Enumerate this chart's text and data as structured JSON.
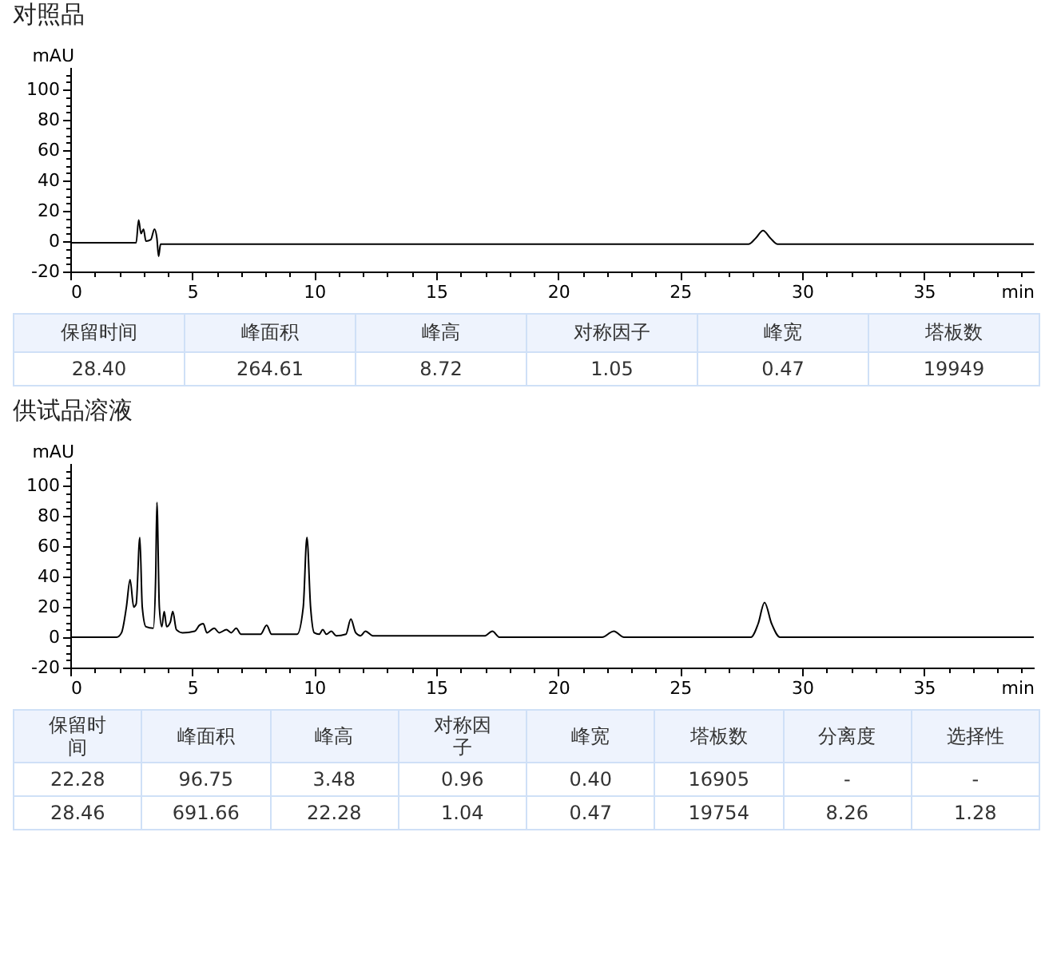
{
  "chart_data": [
    {
      "type": "line",
      "title": "对照品",
      "xlabel": "min",
      "ylabel": "mAU",
      "xlim": [
        0,
        39.5
      ],
      "ylim": [
        -20,
        115
      ],
      "xticks": [
        0,
        {
          "value": 1,
          "label": null
        },
        {
          "value": 2,
          "label": null
        },
        {
          "value": 3,
          "label": null
        },
        {
          "value": 4,
          "label": null
        },
        5,
        {
          "value": 6,
          "label": null
        },
        {
          "value": 7,
          "label": null
        },
        {
          "value": 8,
          "label": null
        },
        {
          "value": 9,
          "label": null
        },
        10,
        {
          "value": 11,
          "label": null
        },
        {
          "value": 12,
          "label": null
        },
        {
          "value": 13,
          "label": null
        },
        {
          "value": 14,
          "label": null
        },
        15,
        {
          "value": 16,
          "label": null
        },
        {
          "value": 17,
          "label": null
        },
        {
          "value": 18,
          "label": null
        },
        {
          "value": 19,
          "label": null
        },
        20,
        {
          "value": 21,
          "label": null
        },
        {
          "value": 22,
          "label": null
        },
        {
          "value": 23,
          "label": null
        },
        {
          "value": 24,
          "label": null
        },
        25,
        {
          "value": 26,
          "label": null
        },
        {
          "value": 27,
          "label": null
        },
        {
          "value": 28,
          "label": null
        },
        {
          "value": 29,
          "label": null
        },
        30,
        {
          "value": 31,
          "label": null
        },
        {
          "value": 32,
          "label": null
        },
        {
          "value": 33,
          "label": null
        },
        {
          "value": 34,
          "label": null
        },
        35,
        {
          "value": 36,
          "label": null
        },
        {
          "value": 37,
          "label": null
        },
        {
          "value": 38,
          "label": null
        },
        {
          "value": 39,
          "label": null
        }
      ],
      "yticks": [
        -20,
        {
          "value": -15,
          "label": null
        },
        {
          "value": -10,
          "label": null
        },
        {
          "value": -5,
          "label": null
        },
        0,
        {
          "value": 5,
          "label": null
        },
        {
          "value": 10,
          "label": null
        },
        {
          "value": 15,
          "label": null
        },
        20,
        {
          "value": 25,
          "label": null
        },
        {
          "value": 30,
          "label": null
        },
        {
          "value": 35,
          "label": null
        },
        40,
        {
          "value": 45,
          "label": null
        },
        {
          "value": 50,
          "label": null
        },
        {
          "value": 55,
          "label": null
        },
        60,
        {
          "value": 65,
          "label": null
        },
        {
          "value": 70,
          "label": null
        },
        {
          "value": 75,
          "label": null
        },
        80,
        {
          "value": 85,
          "label": null
        },
        {
          "value": 90,
          "label": null
        },
        {
          "value": 95,
          "label": null
        },
        100,
        {
          "value": 105,
          "label": null
        },
        {
          "value": 110,
          "label": null
        }
      ],
      "series": [
        {
          "color": "#000000",
          "x": [
            0,
            2.5,
            2.7,
            2.8,
            2.9,
            3.0,
            3.1,
            3.3,
            3.45,
            3.55,
            3.62,
            3.7,
            4,
            10,
            20,
            27.8,
            28.1,
            28.4,
            28.7,
            29,
            35,
            39.5
          ],
          "values": [
            -1,
            -1,
            -1,
            14,
            5,
            8,
            0,
            1,
            8,
            2,
            -10,
            -2,
            -2,
            -2,
            -2,
            -2,
            2,
            7,
            2,
            -2,
            -2,
            -2
          ]
        }
      ]
    },
    {
      "type": "other",
      "categories": [
        "保留时间",
        "峰面积",
        "峰高",
        "对称因子",
        "峰宽",
        "塔板数"
      ],
      "cell_labels": [
        [
          "28.40",
          "264.61",
          "8.72",
          "1.05",
          "0.47",
          "19949"
        ]
      ]
    },
    {
      "type": "line",
      "title": "供试品溶液",
      "xlabel": "min",
      "ylabel": "mAU",
      "xlim": [
        0,
        39.5
      ],
      "ylim": [
        -20,
        115
      ],
      "xticks": [
        0,
        {
          "value": 1,
          "label": null
        },
        {
          "value": 2,
          "label": null
        },
        {
          "value": 3,
          "label": null
        },
        {
          "value": 4,
          "label": null
        },
        5,
        {
          "value": 6,
          "label": null
        },
        {
          "value": 7,
          "label": null
        },
        {
          "value": 8,
          "label": null
        },
        {
          "value": 9,
          "label": null
        },
        10,
        {
          "value": 11,
          "label": null
        },
        {
          "value": 12,
          "label": null
        },
        {
          "value": 13,
          "label": null
        },
        {
          "value": 14,
          "label": null
        },
        15,
        {
          "value": 16,
          "label": null
        },
        {
          "value": 17,
          "label": null
        },
        {
          "value": 18,
          "label": null
        },
        {
          "value": 19,
          "label": null
        },
        20,
        {
          "value": 21,
          "label": null
        },
        {
          "value": 22,
          "label": null
        },
        {
          "value": 23,
          "label": null
        },
        {
          "value": 24,
          "label": null
        },
        25,
        {
          "value": 26,
          "label": null
        },
        {
          "value": 27,
          "label": null
        },
        {
          "value": 28,
          "label": null
        },
        {
          "value": 29,
          "label": null
        },
        30,
        {
          "value": 31,
          "label": null
        },
        {
          "value": 32,
          "label": null
        },
        {
          "value": 33,
          "label": null
        },
        {
          "value": 34,
          "label": null
        },
        35,
        {
          "value": 36,
          "label": null
        },
        {
          "value": 37,
          "label": null
        },
        {
          "value": 38,
          "label": null
        },
        {
          "value": 39,
          "label": null
        }
      ],
      "yticks": [
        -20,
        {
          "value": -15,
          "label": null
        },
        {
          "value": -10,
          "label": null
        },
        {
          "value": -5,
          "label": null
        },
        0,
        {
          "value": 5,
          "label": null
        },
        {
          "value": 10,
          "label": null
        },
        {
          "value": 15,
          "label": null
        },
        20,
        {
          "value": 25,
          "label": null
        },
        {
          "value": 30,
          "label": null
        },
        {
          "value": 35,
          "label": null
        },
        40,
        {
          "value": 45,
          "label": null
        },
        {
          "value": 50,
          "label": null
        },
        {
          "value": 55,
          "label": null
        },
        60,
        {
          "value": 65,
          "label": null
        },
        {
          "value": 70,
          "label": null
        },
        {
          "value": 75,
          "label": null
        },
        80,
        {
          "value": 85,
          "label": null
        },
        {
          "value": 90,
          "label": null
        },
        {
          "value": 95,
          "label": null
        },
        100,
        {
          "value": 105,
          "label": null
        },
        {
          "value": 110,
          "label": null
        }
      ],
      "series": [
        {
          "color": "#000000",
          "x": [
            0,
            1.9,
            2.1,
            2.3,
            2.45,
            2.6,
            2.7,
            2.85,
            2.95,
            3.1,
            3.4,
            3.5,
            3.55,
            3.65,
            3.75,
            3.85,
            3.95,
            4.1,
            4.2,
            4.35,
            4.6,
            5.1,
            5.3,
            5.45,
            5.6,
            5.9,
            6.1,
            6.4,
            6.6,
            6.8,
            7.0,
            7.8,
            8.05,
            8.25,
            9.3,
            9.55,
            9.7,
            9.85,
            10.0,
            10.2,
            10.35,
            10.5,
            10.7,
            10.9,
            11.3,
            11.5,
            11.7,
            11.9,
            12.1,
            12.4,
            12.5,
            17,
            17.3,
            17.6,
            21.8,
            22.28,
            22.7,
            27.9,
            28.2,
            28.46,
            28.75,
            29.1,
            39.5
          ],
          "values": [
            0,
            0,
            3,
            20,
            38,
            20,
            22,
            66,
            20,
            7,
            6,
            40,
            89,
            20,
            7,
            17,
            7,
            10,
            17,
            5,
            3,
            4,
            8,
            9,
            3,
            6,
            3,
            5,
            3,
            6,
            2,
            2,
            8,
            2,
            2,
            20,
            66,
            20,
            3,
            2,
            5,
            2,
            4,
            1,
            2,
            12,
            3,
            1,
            4,
            1,
            1,
            1,
            4,
            0,
            0,
            4,
            0,
            0,
            9,
            23,
            9,
            0,
            0
          ]
        }
      ]
    },
    {
      "type": "other",
      "categories": [
        "保留时间",
        "峰面积",
        "峰高",
        "对称因子",
        "峰宽",
        "塔板数",
        "分离度",
        "选择性"
      ],
      "cell_labels": [
        [
          "22.28",
          "96.75",
          "3.48",
          "0.96",
          "0.40",
          "16905",
          "-",
          "-"
        ],
        [
          "28.46",
          "691.66",
          "22.28",
          "1.04",
          "0.47",
          "19754",
          "8.26",
          "1.28"
        ]
      ]
    }
  ]
}
